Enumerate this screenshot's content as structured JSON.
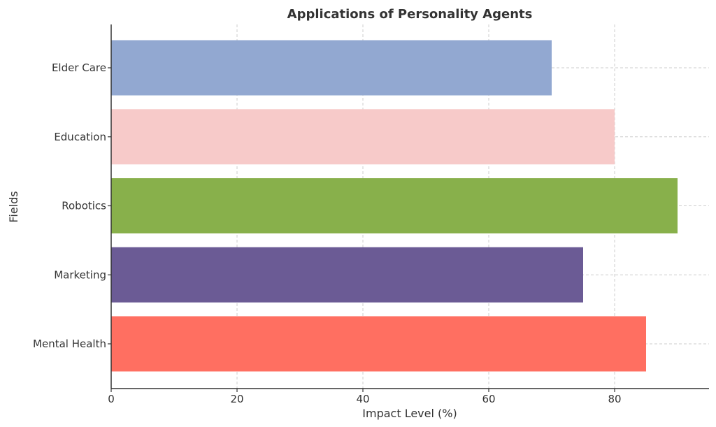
{
  "chart_data": {
    "type": "bar",
    "orientation": "horizontal",
    "title": "Applications of Personality Agents",
    "xlabel": "Impact Level (%)",
    "ylabel": "Fields",
    "categories": [
      "Mental Health",
      "Marketing",
      "Robotics",
      "Education",
      "Elder Care"
    ],
    "values": [
      85,
      75,
      90,
      80,
      70
    ],
    "colors": [
      "#ff6f61",
      "#6b5b95",
      "#88b04b",
      "#f7cac9",
      "#92a8d1"
    ],
    "xlim": [
      0,
      95
    ],
    "xticks": [
      0,
      20,
      40,
      60,
      80
    ],
    "grid": true
  }
}
